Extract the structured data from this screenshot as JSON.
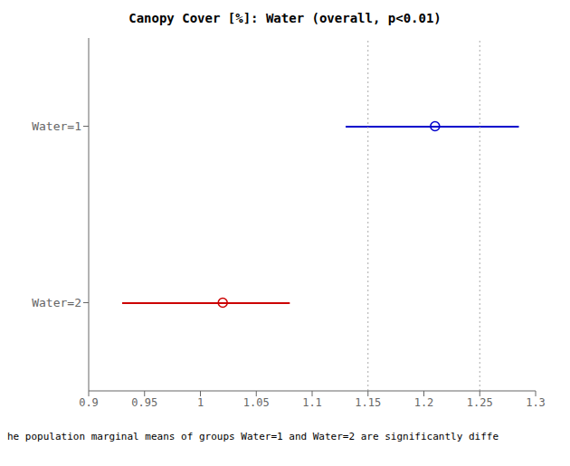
{
  "chart_data": {
    "type": "interval",
    "title": "Canopy Cover [%]: Water (overall, p<0.01)",
    "categories": [
      "Water=1",
      "Water=2"
    ],
    "values": [
      1.21,
      1.02
    ],
    "ci_low": [
      1.13,
      0.93
    ],
    "ci_high": [
      1.285,
      1.08
    ],
    "colors": [
      "#0000cc",
      "#cc0000"
    ],
    "marker": "circle",
    "reference_lines": [
      1.15,
      1.25
    ],
    "xlim": [
      0.9,
      1.3
    ],
    "xticks": [
      0.9,
      0.95,
      1,
      1.05,
      1.1,
      1.15,
      1.2,
      1.25,
      1.3
    ],
    "grid": false,
    "footnote": "he population marginal means of groups Water=1 and Water=2 are significantly diffe"
  }
}
